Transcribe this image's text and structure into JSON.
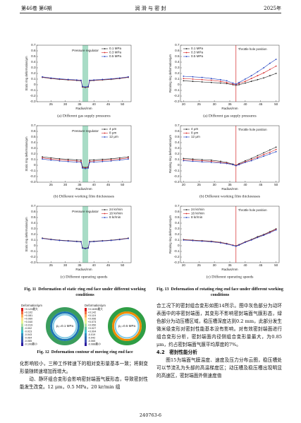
{
  "header": {
    "volume": "第46卷 第6期",
    "journal": "润 滑 与 密 封",
    "year": "2025年"
  },
  "fig11": {
    "caption_number": "Fig. 11",
    "caption": "Deformation of static ring end face under different working conditions",
    "charts": [
      {
        "type": "line",
        "subcaption": "(a) Different gas supply pressures",
        "x_label": "Radius/mm",
        "y_label": "Static ring deformation/μm",
        "x": [
          22,
          25,
          28,
          31,
          34,
          35.5,
          36,
          37,
          38,
          38.5,
          40,
          43,
          46,
          49,
          52
        ],
        "xlim": [
          20,
          53
        ],
        "xticks": [
          25,
          30,
          35,
          40,
          45,
          50
        ],
        "ylim": [
          -0.3,
          0.7
        ],
        "yticks": [
          -0.3,
          -0.2,
          -0.1,
          0.0,
          0.1,
          0.2,
          0.3,
          0.4,
          0.5,
          0.6,
          0.7
        ],
        "legend": "upper right",
        "region": {
          "label": "Pressure regulator",
          "x": [
            36,
            38
          ]
        },
        "series": [
          {
            "name": "0.1 MPa",
            "color": "#222222",
            "values": [
              0.13,
              0.11,
              0.095,
              0.085,
              0.075,
              0.07,
              -0.04,
              -0.05,
              -0.04,
              0.07,
              0.075,
              0.085,
              0.095,
              0.11,
              0.13
            ]
          },
          {
            "name": "0.3 MPa",
            "color": "#d62728",
            "values": [
              0.135,
              0.115,
              0.1,
              0.09,
              0.08,
              0.075,
              -0.035,
              -0.045,
              -0.035,
              0.075,
              0.08,
              0.09,
              0.1,
              0.115,
              0.135
            ]
          },
          {
            "name": "0.5 MPa",
            "color": "#1f3fbf",
            "values": [
              0.14,
              0.12,
              0.105,
              0.095,
              0.085,
              0.08,
              -0.03,
              -0.04,
              -0.03,
              0.08,
              0.085,
              0.095,
              0.105,
              0.12,
              0.14
            ]
          }
        ]
      },
      {
        "type": "line",
        "subcaption": "(b) Different working film thicknesses",
        "x_label": "Radius/mm",
        "y_label": "Static ring deformation/μm",
        "x": [
          22,
          25,
          28,
          31,
          34,
          35.5,
          36,
          37,
          38,
          38.5,
          40,
          43,
          46,
          49,
          52
        ],
        "xlim": [
          20,
          53
        ],
        "xticks": [
          25,
          30,
          35,
          40,
          45,
          50
        ],
        "ylim": [
          -0.3,
          0.7
        ],
        "yticks": [
          -0.3,
          -0.2,
          -0.1,
          0.0,
          0.1,
          0.2,
          0.3,
          0.4,
          0.5,
          0.6,
          0.7
        ],
        "legend": "upper right",
        "region": {
          "label": "Pressure regulator",
          "x": [
            36,
            38
          ]
        },
        "series": [
          {
            "name": "4 μm",
            "color": "#222222",
            "values": [
              0.15,
              0.13,
              0.115,
              0.105,
              0.095,
              0.09,
              -0.03,
              -0.04,
              -0.03,
              0.09,
              0.095,
              0.105,
              0.115,
              0.13,
              0.15
            ]
          },
          {
            "name": "8 μm",
            "color": "#d62728",
            "values": [
              0.13,
              0.11,
              0.095,
              0.085,
              0.075,
              0.07,
              -0.04,
              -0.05,
              -0.04,
              0.07,
              0.075,
              0.085,
              0.095,
              0.11,
              0.13
            ]
          },
          {
            "name": "12 μm",
            "color": "#1f3fbf",
            "values": [
              0.11,
              0.09,
              0.075,
              0.065,
              0.055,
              0.05,
              -0.05,
              -0.06,
              -0.05,
              0.05,
              0.055,
              0.065,
              0.075,
              0.09,
              0.11
            ]
          }
        ]
      },
      {
        "type": "line",
        "subcaption": "(c) Different operating speeds",
        "x_label": "Radius/mm",
        "y_label": "Static ring deformation/μm",
        "x": [
          22,
          25,
          28,
          31,
          34,
          35.5,
          36,
          37,
          38,
          38.5,
          40,
          43,
          46,
          49,
          52
        ],
        "xlim": [
          20,
          53
        ],
        "xticks": [
          25,
          30,
          35,
          40,
          45,
          50
        ],
        "ylim": [
          -0.3,
          0.7
        ],
        "yticks": [
          -0.3,
          -0.2,
          -0.1,
          0.0,
          0.1,
          0.2,
          0.3,
          0.4,
          0.5,
          0.6,
          0.7
        ],
        "legend": "upper right",
        "region": {
          "label": "Pressure regulator",
          "x": [
            36,
            38
          ]
        },
        "series": [
          {
            "name": "24 kr/min",
            "color": "#222222",
            "values": [
              0.135,
              0.115,
              0.1,
              0.09,
              0.08,
              0.075,
              -0.035,
              -0.045,
              -0.035,
              0.075,
              0.08,
              0.09,
              0.1,
              0.115,
              0.135
            ]
          },
          {
            "name": "16 kr/min",
            "color": "#d62728",
            "values": [
              0.13,
              0.11,
              0.095,
              0.085,
              0.075,
              0.07,
              -0.04,
              -0.05,
              -0.04,
              0.07,
              0.075,
              0.085,
              0.095,
              0.11,
              0.13
            ]
          },
          {
            "name": "8 kr/min",
            "color": "#1f3fbf",
            "values": [
              0.128,
              0.108,
              0.093,
              0.083,
              0.073,
              0.068,
              -0.042,
              -0.052,
              -0.042,
              0.068,
              0.073,
              0.083,
              0.093,
              0.108,
              0.128
            ]
          }
        ]
      }
    ]
  },
  "fig12": {
    "caption_number": "Fig. 12",
    "caption": "Deformation contour of moving ring end face",
    "panels": [
      {
        "pressure_label": "p₀=0.1 MPa",
        "legend_title": "Deformation/μm",
        "legend": [
          "+0.123最大",
          "+0.102",
          "+0.081",
          "+0.060",
          "+0.040",
          "+0.019",
          "-0.002",
          "-0.023",
          "-0.043",
          "-0.064",
          "-0.085",
          "-0.106最小"
        ]
      },
      {
        "pressure_label": "p₀=0.5 MPa",
        "legend_title": "Deformation/μm",
        "legend": [
          "+0.1635最大",
          "+0.142",
          "+0.119",
          "+0.096",
          "+0.073",
          "+0.050",
          "+0.027",
          "+0.004",
          "-0.019",
          "-0.042",
          "-0.065",
          "-0.088最小"
        ]
      }
    ]
  },
  "fig13": {
    "caption_number": "Fig. 13",
    "caption": "Deformation of rotating ring end face under different working conditions",
    "charts": [
      {
        "type": "line",
        "subcaption": "(a) Different gas supply pressures",
        "x_label": "Radius/mm",
        "y_label": "Rotating ring deformation/μm",
        "x": [
          20,
          23,
          26,
          29,
          32,
          34,
          36,
          37,
          38,
          40,
          42,
          44,
          46,
          48,
          50
        ],
        "xlim": [
          19,
          51
        ],
        "xticks": [
          20,
          25,
          30,
          35,
          40,
          45,
          50
        ],
        "ylim": [
          -0.3,
          0.7
        ],
        "yticks": [
          -0.3,
          -0.2,
          -0.1,
          0.0,
          0.1,
          0.2,
          0.3,
          0.4,
          0.5,
          0.6,
          0.7
        ],
        "legend": "upper left",
        "marker": {
          "label": "Throttle hole position",
          "x": 37
        },
        "series": [
          {
            "name": "0.1 MPa",
            "color": "#222222",
            "values": [
              0.07,
              0.06,
              0.05,
              0.04,
              0.03,
              0.02,
              0.0,
              -0.01,
              0.0,
              0.03,
              0.06,
              0.09,
              0.12,
              0.16,
              0.2
            ]
          },
          {
            "name": "0.3 MPa",
            "color": "#d62728",
            "values": [
              0.11,
              0.1,
              0.09,
              0.08,
              0.06,
              0.04,
              0.01,
              0.0,
              0.02,
              0.06,
              0.11,
              0.16,
              0.21,
              0.27,
              0.33
            ]
          },
          {
            "name": "0.5 MPa",
            "color": "#1f3fbf",
            "values": [
              0.15,
              0.14,
              0.13,
              0.11,
              0.09,
              0.07,
              0.03,
              0.01,
              0.04,
              0.1,
              0.16,
              0.23,
              0.3,
              0.38,
              0.45
            ]
          }
        ]
      },
      {
        "type": "line",
        "subcaption": "(b) Different working film thicknesses",
        "x_label": "Radius/mm",
        "y_label": "Rotating ring deformation/μm",
        "x": [
          20,
          23,
          26,
          29,
          32,
          34,
          36,
          37,
          38,
          40,
          42,
          44,
          46,
          48,
          50
        ],
        "xlim": [
          19,
          51
        ],
        "xticks": [
          20,
          25,
          30,
          35,
          40,
          45,
          50
        ],
        "ylim": [
          -0.3,
          0.7
        ],
        "yticks": [
          -0.3,
          -0.2,
          -0.1,
          0.0,
          0.1,
          0.2,
          0.3,
          0.4,
          0.5,
          0.6,
          0.7
        ],
        "legend": "upper left",
        "marker": {
          "label": "Throttle hole position",
          "x": 37
        },
        "series": [
          {
            "name": "4 μm",
            "color": "#222222",
            "values": [
              0.12,
              0.11,
              0.1,
              0.09,
              0.07,
              0.05,
              0.02,
              0.0,
              0.03,
              0.08,
              0.12,
              0.17,
              0.22,
              0.27,
              0.32
            ]
          },
          {
            "name": "8 μm",
            "color": "#d62728",
            "values": [
              0.1,
              0.09,
              0.08,
              0.07,
              0.05,
              0.04,
              0.01,
              0.0,
              0.02,
              0.06,
              0.1,
              0.14,
              0.19,
              0.23,
              0.28
            ]
          },
          {
            "name": "12 μm",
            "color": "#1f3fbf",
            "values": [
              0.08,
              0.07,
              0.06,
              0.05,
              0.04,
              0.03,
              0.01,
              -0.01,
              0.01,
              0.05,
              0.08,
              0.12,
              0.16,
              0.2,
              0.24
            ]
          }
        ]
      },
      {
        "type": "line",
        "subcaption": "(c) Different operating speeds",
        "x_label": "Radius/mm",
        "y_label": "Rotating ring deformation/μm",
        "x": [
          20,
          23,
          26,
          29,
          32,
          34,
          36,
          37,
          38,
          40,
          42,
          44,
          46,
          48,
          50
        ],
        "xlim": [
          19,
          51
        ],
        "xticks": [
          20,
          25,
          30,
          35,
          40,
          45,
          50
        ],
        "ylim": [
          -0.3,
          0.7
        ],
        "yticks": [
          -0.3,
          -0.2,
          -0.1,
          0.0,
          0.1,
          0.2,
          0.3,
          0.4,
          0.5,
          0.6,
          0.7
        ],
        "legend": "upper left",
        "marker": {
          "label": "Throttle hole position",
          "x": 37
        },
        "series": [
          {
            "name": "24 kr/min",
            "color": "#222222",
            "values": [
              0.11,
              0.1,
              0.09,
              0.08,
              0.06,
              0.04,
              0.01,
              0.0,
              0.02,
              0.07,
              0.11,
              0.16,
              0.2,
              0.25,
              0.3
            ]
          },
          {
            "name": "16 kr/min",
            "color": "#d62728",
            "values": [
              0.105,
              0.095,
              0.085,
              0.075,
              0.055,
              0.035,
              0.01,
              -0.005,
              0.015,
              0.065,
              0.105,
              0.15,
              0.19,
              0.24,
              0.29
            ]
          },
          {
            "name": "8 kr/min",
            "color": "#1f3fbf",
            "values": [
              0.1,
              0.09,
              0.08,
              0.07,
              0.05,
              0.03,
              0.005,
              -0.01,
              0.01,
              0.06,
              0.1,
              0.145,
              0.185,
              0.23,
              0.28
            ]
          }
        ]
      }
    ]
  },
  "text": {
    "left": [
      "化影响较小，三种工作转速下的相对变形量基本一致；将剩变形量随转速增加而增大。",
      "动、静环组合变形会影响密封端面气膜形态，导致密封性能发生改变。12 μm，0.5 MPa，20 kr/min 组"
    ],
    "right": [
      "合工况下的密封组合变形如图14所示。图中灰色部分为动环表面中的非密封端面，其变形不影响密封端面气膜形态，绿色部分为动压槽区域，稳压槽深度达到0.2 mm，此部分发生微米级变形对密封性能基本没有影响。对有效密封端面进行组合变形分析，密封端面内径侧组合变形量最大，为0.85 μm，约占密封端面气膜平均厚度的7%。"
    ],
    "section": "4.2　密封性能分析",
    "right_after": [
      "图15为端面气膜温度、速度及压力分布云图，稳压槽处可以节流孔为头部的高温梯度区；动压槽及稳压槽出现明显的高速区，密封端面外侧速度值"
    ]
  },
  "footer": "240763-6"
}
